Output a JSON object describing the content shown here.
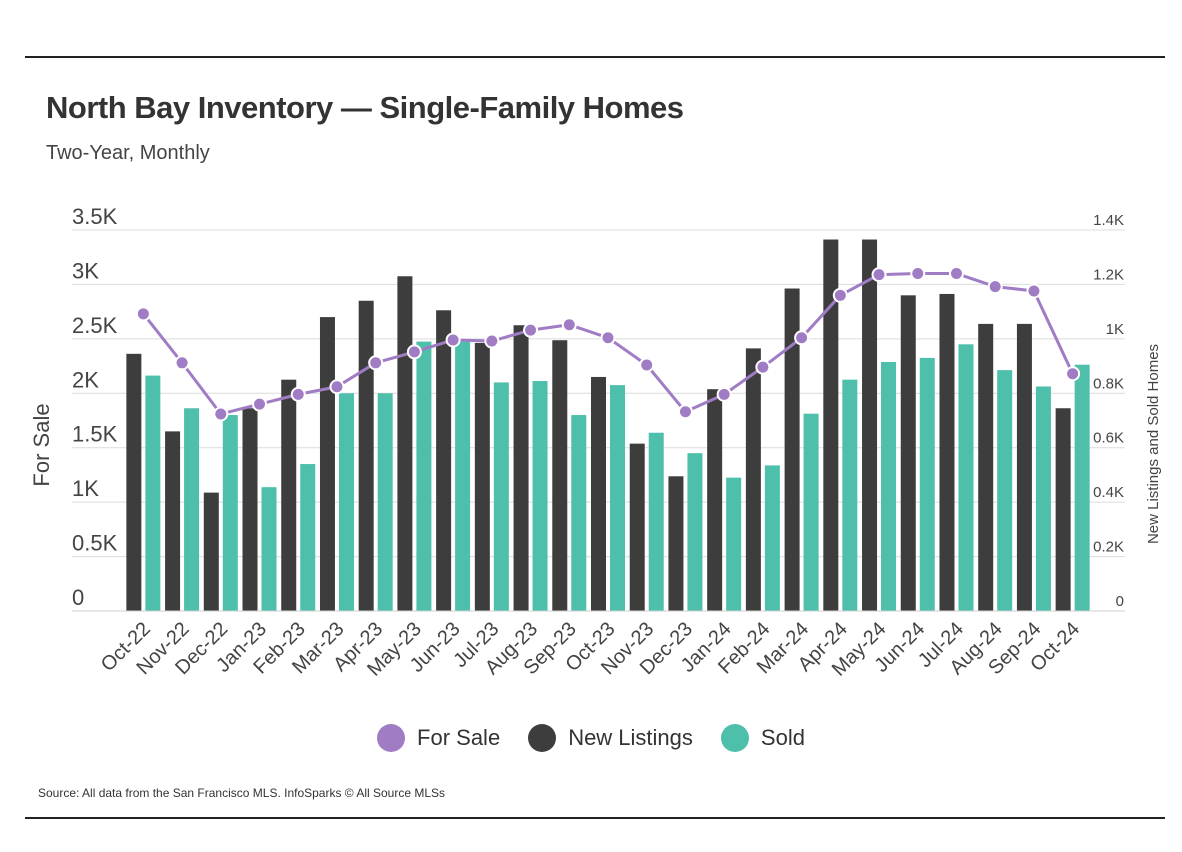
{
  "header": {
    "title": "North Bay Inventory — Single-Family Homes",
    "subtitle": "Two-Year, Monthly"
  },
  "footer": {
    "source": "Source:  All data from the San Francisco MLS. InfoSparks © All Source MLSs"
  },
  "colors": {
    "for_sale": "#a07cc5",
    "new_listings": "#3d3d3d",
    "sold": "#4dbfaa"
  },
  "chart_data": {
    "type": "bar",
    "title": "North Bay Inventory — Single-Family Homes",
    "subtitle": "Two-Year, Monthly",
    "categories": [
      "Oct-22",
      "Nov-22",
      "Dec-22",
      "Jan-23",
      "Feb-23",
      "Mar-23",
      "Apr-23",
      "May-23",
      "Jun-23",
      "Jul-23",
      "Aug-23",
      "Sep-23",
      "Oct-23",
      "Nov-23",
      "Dec-23",
      "Jan-24",
      "Feb-24",
      "Mar-24",
      "Apr-24",
      "May-24",
      "Jun-24",
      "Jul-24",
      "Aug-24",
      "Sep-24",
      "Oct-24"
    ],
    "ylabel_left": "For Sale",
    "ylabel_right": "New Listings and Sold Homes",
    "ylim_left": [
      0,
      3500
    ],
    "ylim_right": [
      0,
      1400
    ],
    "yticks_left": [
      "0",
      "0.5K",
      "1K",
      "1.5K",
      "2K",
      "2.5K",
      "3K",
      "3.5K"
    ],
    "yticks_right": [
      "0",
      "0.2K",
      "0.4K",
      "0.6K",
      "0.8K",
      "1K",
      "1.2K",
      "1.4K"
    ],
    "grid": true,
    "legend_position": "bottom",
    "series": [
      {
        "name": "For Sale",
        "type": "line",
        "axis": "left",
        "values": [
          2730,
          2280,
          1810,
          1900,
          1990,
          2060,
          2280,
          2380,
          2490,
          2480,
          2580,
          2630,
          2510,
          2260,
          1830,
          1990,
          2240,
          2510,
          2900,
          3090,
          3100,
          3100,
          2980,
          2940,
          2180
        ]
      },
      {
        "name": "New Listings",
        "type": "bar",
        "axis": "right",
        "values": [
          945,
          660,
          435,
          745,
          850,
          1080,
          1140,
          1230,
          1105,
          985,
          1050,
          995,
          860,
          615,
          495,
          815,
          965,
          1185,
          1365,
          1365,
          1160,
          1165,
          1055,
          1055,
          745
        ]
      },
      {
        "name": "Sold",
        "type": "bar",
        "axis": "right",
        "values": [
          865,
          745,
          720,
          455,
          540,
          800,
          800,
          990,
          990,
          840,
          845,
          720,
          830,
          655,
          580,
          490,
          535,
          725,
          850,
          915,
          930,
          980,
          885,
          825,
          905
        ]
      }
    ]
  }
}
